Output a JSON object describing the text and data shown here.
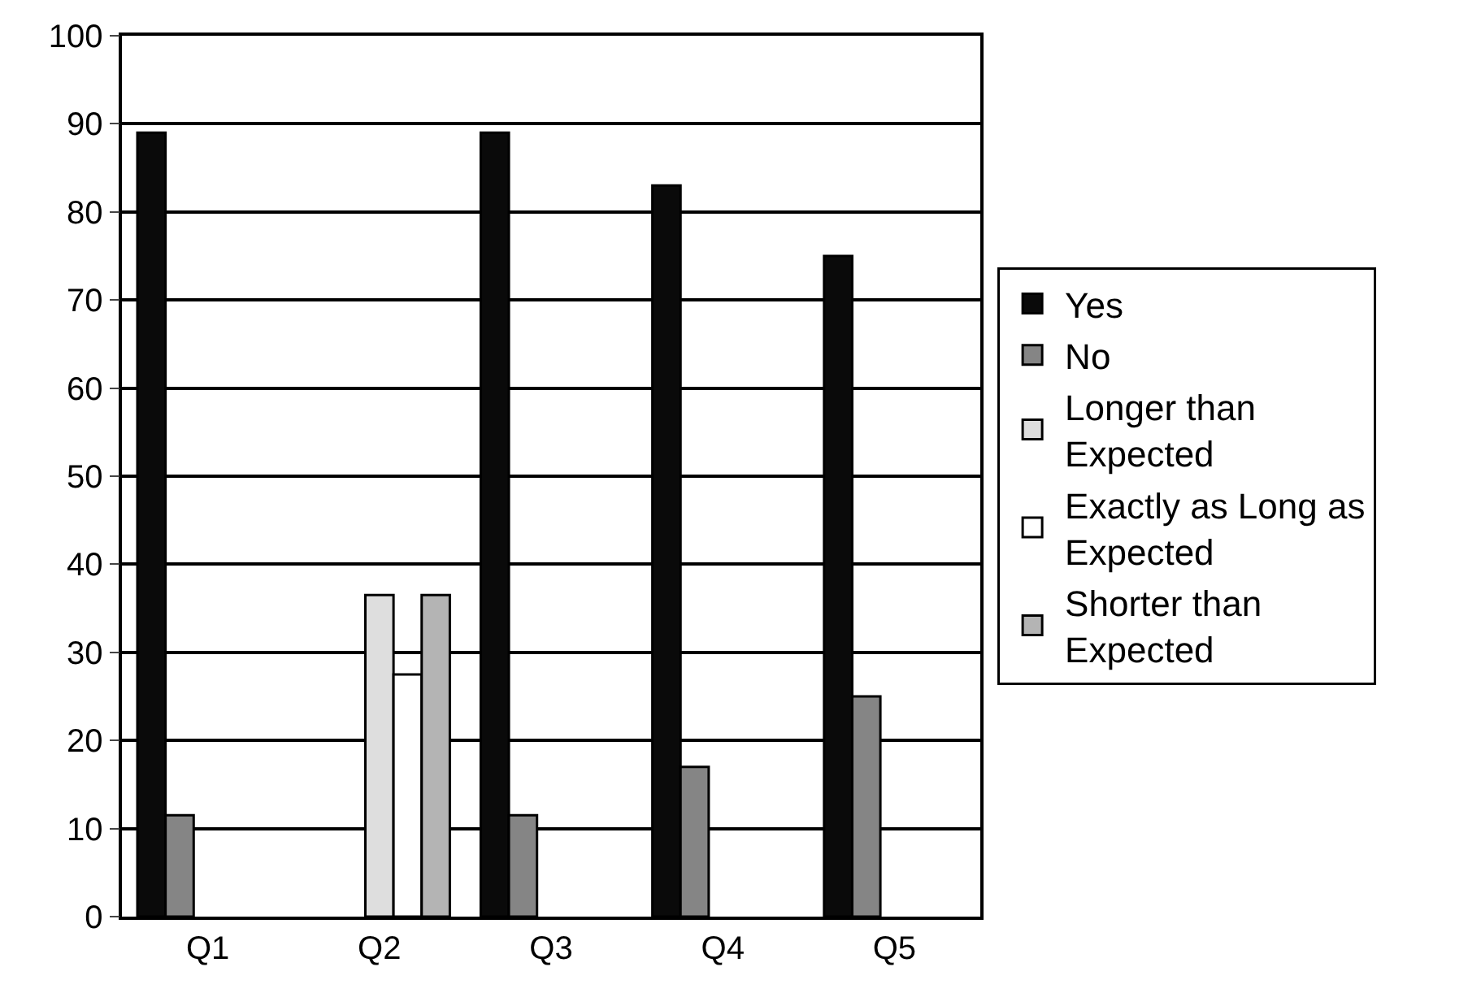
{
  "chart_data": {
    "type": "bar",
    "categories": [
      "Q1",
      "Q2",
      "Q3",
      "Q4",
      "Q5"
    ],
    "series": [
      {
        "name": "Yes",
        "color": "#0a0a0a",
        "values": [
          89,
          null,
          89,
          83,
          75
        ]
      },
      {
        "name": "No",
        "color": "#858585",
        "values": [
          11.5,
          null,
          11.5,
          17,
          25
        ]
      },
      {
        "name": "Longer than Expected",
        "color": "#dedede",
        "values": [
          null,
          36.5,
          null,
          null,
          null
        ]
      },
      {
        "name": "Exactly as Long as Expected",
        "color": "#ffffff",
        "values": [
          null,
          27.5,
          null,
          null,
          null
        ]
      },
      {
        "name": "Shorter than Expected",
        "color": "#b4b4b4",
        "values": [
          null,
          36.5,
          null,
          null,
          null
        ]
      }
    ],
    "ylim": [
      0,
      100
    ],
    "yticks": [
      0,
      10,
      20,
      30,
      40,
      50,
      60,
      70,
      80,
      90,
      100
    ],
    "grid": "y",
    "legend": "right"
  }
}
